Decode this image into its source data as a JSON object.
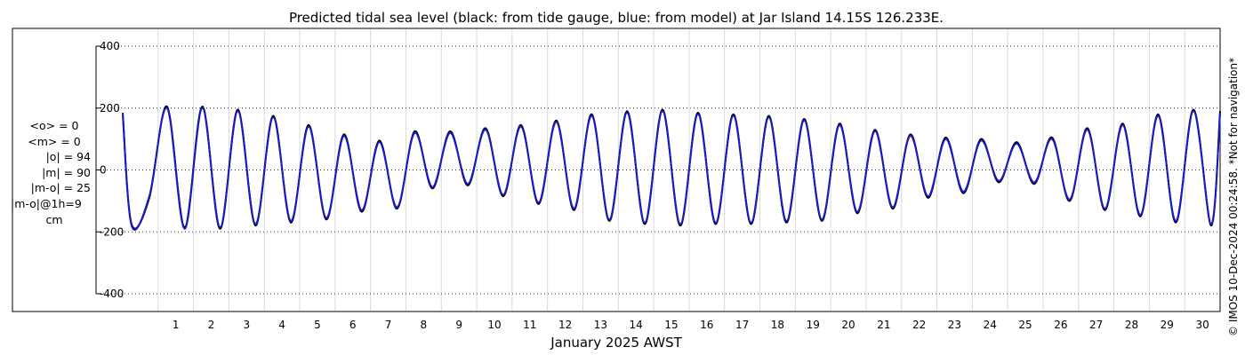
{
  "chart_data": {
    "type": "line",
    "title": "Predicted tidal sea level (black: from tide gauge, blue: from model) at Jar Island 14.15S 126.233E.",
    "xlabel": "January 2025 AWST",
    "ylabel": "",
    "ylim": [
      -400,
      400
    ],
    "xlim": [
      0,
      31
    ],
    "yticks": [
      "400",
      "200",
      "0",
      "-200",
      "-400"
    ],
    "ytick_values": [
      400,
      200,
      0,
      -200,
      -400
    ],
    "xticks": [
      "1",
      "2",
      "3",
      "4",
      "5",
      "6",
      "7",
      "8",
      "9",
      "10",
      "11",
      "12",
      "13",
      "14",
      "15",
      "16",
      "17",
      "18",
      "19",
      "20",
      "21",
      "22",
      "23",
      "24",
      "25",
      "26",
      "27",
      "28",
      "29",
      "30"
    ],
    "grid": true,
    "series": [
      {
        "name": "tide gauge",
        "color": "#000000",
        "x": [
          0.0,
          0.25,
          0.75,
          1.25,
          1.75,
          2.25,
          2.75,
          3.25,
          3.75,
          4.25,
          4.75,
          5.25,
          5.75,
          6.25,
          6.75,
          7.25,
          7.75,
          8.25,
          8.75,
          9.25,
          9.75,
          10.25,
          10.75,
          11.25,
          11.75,
          12.25,
          12.75,
          13.25,
          13.75,
          14.25,
          14.75,
          15.25,
          15.75,
          16.25,
          16.75,
          17.25,
          17.75,
          18.25,
          18.75,
          19.25,
          19.75,
          20.25,
          20.75,
          21.25,
          21.75,
          22.25,
          22.75,
          23.25,
          23.75,
          24.25,
          24.75,
          25.25,
          25.75,
          26.25,
          26.75,
          27.25,
          27.75,
          28.25,
          28.75,
          29.25,
          29.75,
          30.25,
          30.75,
          31.0
        ],
        "values": [
          180,
          -175,
          -90,
          205,
          -185,
          205,
          -190,
          195,
          -180,
          175,
          -170,
          145,
          -160,
          115,
          -135,
          95,
          -125,
          125,
          -60,
          125,
          -50,
          135,
          -85,
          145,
          -110,
          160,
          -130,
          180,
          -165,
          190,
          -175,
          195,
          -180,
          185,
          -175,
          180,
          -175,
          175,
          -170,
          165,
          -165,
          150,
          -140,
          130,
          -125,
          115,
          -90,
          105,
          -75,
          100,
          -40,
          90,
          -45,
          105,
          -100,
          135,
          -130,
          150,
          -150,
          180,
          -170,
          195,
          -180,
          190
        ]
      },
      {
        "name": "model",
        "color": "#1a1acc",
        "x": [
          0.0,
          0.25,
          0.75,
          1.25,
          1.75,
          2.25,
          2.75,
          3.25,
          3.75,
          4.25,
          4.75,
          5.25,
          5.75,
          6.25,
          6.75,
          7.25,
          7.75,
          8.25,
          8.75,
          9.25,
          9.75,
          10.25,
          10.75,
          11.25,
          11.75,
          12.25,
          12.75,
          13.25,
          13.75,
          14.25,
          14.75,
          15.25,
          15.75,
          16.25,
          16.75,
          17.25,
          17.75,
          18.25,
          18.75,
          19.25,
          19.75,
          20.25,
          20.75,
          21.25,
          21.75,
          22.25,
          22.75,
          23.25,
          23.75,
          24.25,
          24.75,
          25.25,
          25.75,
          26.25,
          26.75,
          27.25,
          27.75,
          28.25,
          28.75,
          29.25,
          29.75,
          30.25,
          30.75,
          31.0
        ],
        "values": [
          185,
          -180,
          -85,
          200,
          -190,
          200,
          -185,
          190,
          -175,
          170,
          -165,
          140,
          -155,
          110,
          -130,
          90,
          -120,
          120,
          -55,
          120,
          -45,
          130,
          -80,
          140,
          -105,
          155,
          -125,
          175,
          -160,
          185,
          -170,
          190,
          -175,
          180,
          -170,
          175,
          -170,
          170,
          -165,
          160,
          -160,
          145,
          -135,
          125,
          -120,
          110,
          -85,
          100,
          -70,
          95,
          -35,
          85,
          -40,
          100,
          -95,
          130,
          -125,
          145,
          -145,
          175,
          -165,
          190,
          -175,
          185
        ]
      }
    ]
  },
  "stats": {
    "mean_obs": "<o> = 0",
    "mean_model": "<m> = 0",
    "abs_obs": "|o| = 94",
    "abs_model": "|m| = 90",
    "abs_diff": "|m-o| = 25",
    "abs_diff_1h": "|m-o|@1h=9",
    "unit": "cm"
  },
  "watermark": "© IMOS 10-Dec-2024 00:24:58. *Not for navigation*"
}
